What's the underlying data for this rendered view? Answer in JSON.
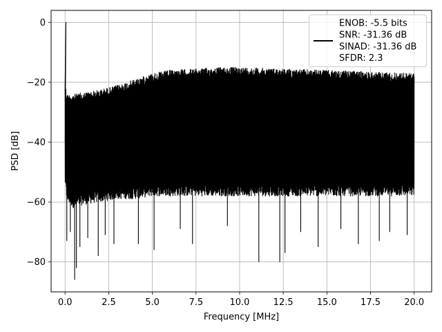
{
  "chart_data": {
    "type": "line",
    "title": "",
    "xlabel": "Frequency [MHz]",
    "ylabel": "PSD [dB]",
    "xlim": [
      -0.8,
      21.0
    ],
    "ylim": [
      -90,
      4
    ],
    "xticks": [
      0.0,
      2.5,
      5.0,
      7.5,
      10.0,
      12.5,
      15.0,
      17.5,
      20.0
    ],
    "xtick_labels": [
      "0.0",
      "2.5",
      "5.0",
      "7.5",
      "10.0",
      "12.5",
      "15.0",
      "17.5",
      "20.0"
    ],
    "yticks": [
      0,
      -20,
      -40,
      -60,
      -80
    ],
    "ytick_labels": [
      "0",
      "−20",
      "−40",
      "−60",
      "−80"
    ],
    "grid": true,
    "legend_position": "top-right",
    "legend_lines": [
      "ENOB: -5.5 bits",
      "SNR: -31.36 dB",
      "SINAD: -31.36 dB",
      "SFDR: 2.3"
    ],
    "series": [
      {
        "color": "#000000",
        "style": "dense noise band",
        "peak": {
          "x": 0.05,
          "y": 0
        },
        "envelope": {
          "x": [
            0.0,
            0.1,
            0.5,
            1.0,
            2.0,
            3.0,
            4.0,
            5.0,
            6.0,
            7.5,
            9.0,
            10.0,
            12.5,
            15.0,
            17.5,
            20.0
          ],
          "upper": [
            -20,
            -24,
            -24,
            -23.5,
            -22.5,
            -21,
            -19,
            -17,
            -16,
            -15.5,
            -15,
            -15,
            -15.5,
            -16,
            -16.5,
            -17
          ],
          "lower": [
            -54,
            -60,
            -62,
            -61,
            -60,
            -59,
            -59,
            -58,
            -58,
            -58,
            -58,
            -58,
            -58,
            -58,
            -58,
            -58
          ]
        },
        "dips": [
          {
            "x": 0.1,
            "y": -73
          },
          {
            "x": 0.3,
            "y": -70
          },
          {
            "x": 0.55,
            "y": -86
          },
          {
            "x": 0.65,
            "y": -82
          },
          {
            "x": 0.85,
            "y": -75
          },
          {
            "x": 1.3,
            "y": -72
          },
          {
            "x": 1.9,
            "y": -78
          },
          {
            "x": 2.3,
            "y": -71
          },
          {
            "x": 2.8,
            "y": -74
          },
          {
            "x": 4.2,
            "y": -74
          },
          {
            "x": 5.1,
            "y": -76
          },
          {
            "x": 6.6,
            "y": -69
          },
          {
            "x": 7.3,
            "y": -74
          },
          {
            "x": 9.3,
            "y": -68
          },
          {
            "x": 11.1,
            "y": -80
          },
          {
            "x": 12.3,
            "y": -80
          },
          {
            "x": 12.6,
            "y": -77
          },
          {
            "x": 13.5,
            "y": -70
          },
          {
            "x": 14.5,
            "y": -75
          },
          {
            "x": 15.8,
            "y": -69
          },
          {
            "x": 16.8,
            "y": -74
          },
          {
            "x": 18.0,
            "y": -73
          },
          {
            "x": 18.6,
            "y": -70
          },
          {
            "x": 19.6,
            "y": -71
          }
        ]
      }
    ]
  }
}
